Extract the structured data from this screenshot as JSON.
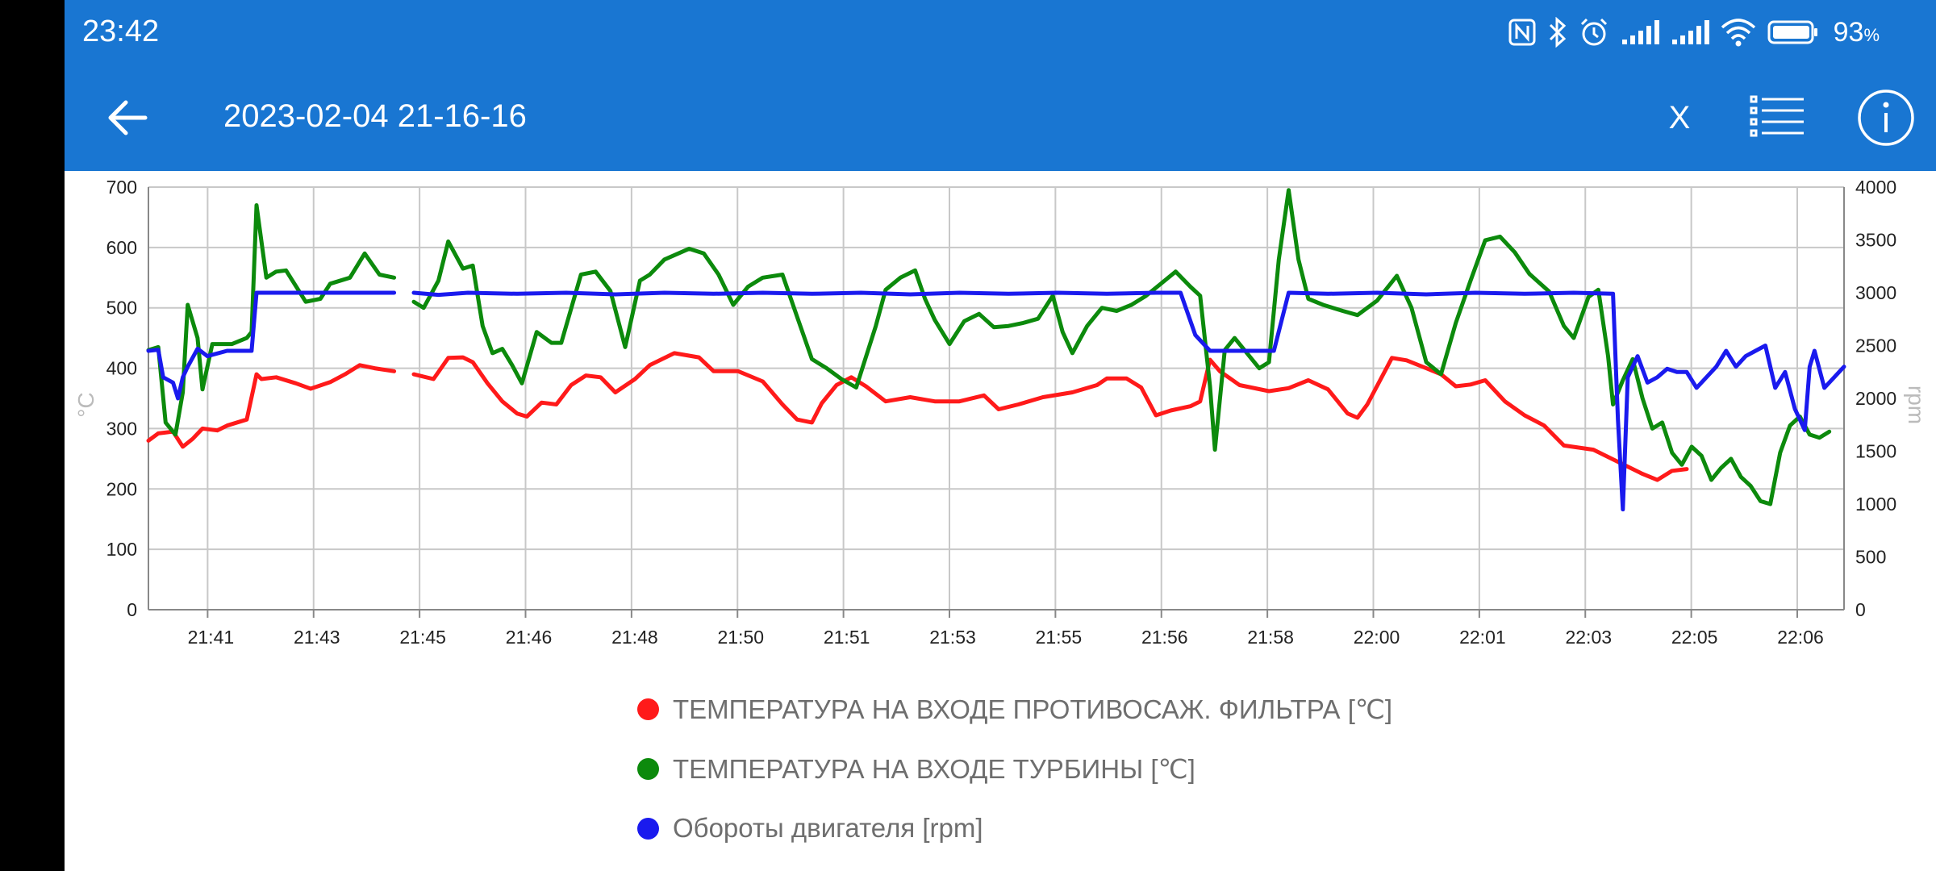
{
  "status_bar": {
    "time": "23:42",
    "battery_percent": "93",
    "battery_unit": "%",
    "icons": [
      "nfc-icon",
      "bluetooth-icon",
      "alarm-icon",
      "signal-icon",
      "signal-icon",
      "wifi-icon",
      "battery-icon"
    ]
  },
  "app_bar": {
    "title": "2023-02-04 21-16-16",
    "close_label": "X",
    "background": "#1976d2"
  },
  "chart_data": {
    "type": "line",
    "x": [
      "21:41",
      "21:43",
      "21:45",
      "21:46",
      "21:48",
      "21:50",
      "21:51",
      "21:53",
      "21:55",
      "21:56",
      "21:58",
      "22:00",
      "22:01",
      "22:03",
      "22:05",
      "22:06"
    ],
    "ylabel": "°C",
    "ylabel_right": "rpm",
    "ylim": [
      0,
      700
    ],
    "yticks": [
      "0",
      "100",
      "200",
      "300",
      "400",
      "500",
      "600",
      "700"
    ],
    "ylim_right": [
      0,
      4000
    ],
    "yticks_right": [
      "0",
      "500",
      "1000",
      "1500",
      "2000",
      "2500",
      "3000",
      "3500",
      "4000"
    ],
    "grid": true,
    "series": [
      {
        "name": "ТЕМПЕРАТУРА НА ВХОДЕ ПРОТИВОСАЖ. ФИЛЬТРА [℃]",
        "color": "#ff1a1a",
        "axis": "left",
        "points": [
          [
            0,
            280
          ],
          [
            0.2,
            292
          ],
          [
            0.5,
            295
          ],
          [
            0.7,
            270
          ],
          [
            0.9,
            283
          ],
          [
            1.1,
            300
          ],
          [
            1.4,
            297
          ],
          [
            1.6,
            305
          ],
          [
            2.0,
            315
          ],
          [
            2.2,
            390
          ],
          [
            2.3,
            382
          ],
          [
            2.6,
            385
          ],
          [
            3.0,
            375
          ],
          [
            3.3,
            366
          ],
          [
            3.7,
            377
          ],
          [
            4.0,
            390
          ],
          [
            4.3,
            405
          ],
          [
            4.6,
            400
          ],
          [
            5.0,
            395
          ],
          null,
          [
            5.4,
            390
          ],
          [
            5.8,
            382
          ],
          [
            6.1,
            417
          ],
          [
            6.4,
            418
          ],
          [
            6.6,
            410
          ],
          [
            6.9,
            375
          ],
          [
            7.2,
            345
          ],
          [
            7.5,
            325
          ],
          [
            7.7,
            320
          ],
          [
            8.0,
            343
          ],
          [
            8.3,
            340
          ],
          [
            8.6,
            372
          ],
          [
            8.9,
            388
          ],
          [
            9.2,
            385
          ],
          [
            9.5,
            360
          ],
          [
            9.9,
            382
          ],
          [
            10.2,
            405
          ],
          [
            10.7,
            425
          ],
          [
            11.2,
            418
          ],
          [
            11.5,
            395
          ],
          [
            12.0,
            395
          ],
          [
            12.5,
            378
          ],
          [
            12.9,
            340
          ],
          [
            13.2,
            315
          ],
          [
            13.5,
            310
          ],
          [
            13.7,
            342
          ],
          [
            14.0,
            372
          ],
          [
            14.3,
            385
          ],
          [
            14.6,
            370
          ],
          [
            15.0,
            345
          ],
          [
            15.5,
            352
          ],
          [
            16.0,
            345
          ],
          [
            16.5,
            345
          ],
          [
            17.0,
            355
          ],
          [
            17.3,
            332
          ],
          [
            17.7,
            340
          ],
          [
            18.2,
            352
          ],
          [
            18.8,
            360
          ],
          [
            19.3,
            372
          ],
          [
            19.5,
            383
          ],
          [
            19.9,
            383
          ],
          [
            20.2,
            368
          ],
          [
            20.5,
            322
          ],
          [
            20.8,
            330
          ],
          [
            21.2,
            337
          ],
          [
            21.4,
            345
          ],
          [
            21.6,
            414
          ],
          [
            21.8,
            395
          ],
          [
            22.2,
            372
          ],
          [
            22.8,
            362
          ],
          [
            23.2,
            367
          ],
          [
            23.6,
            380
          ],
          [
            24.0,
            365
          ],
          [
            24.4,
            325
          ],
          [
            24.6,
            318
          ],
          [
            24.8,
            340
          ],
          [
            25.3,
            417
          ],
          [
            25.6,
            413
          ],
          [
            26.0,
            400
          ],
          [
            26.3,
            390
          ],
          [
            26.6,
            370
          ],
          [
            26.9,
            373
          ],
          [
            27.2,
            380
          ],
          [
            27.6,
            345
          ],
          [
            28.0,
            322
          ],
          [
            28.4,
            305
          ],
          [
            28.8,
            272
          ],
          [
            29.4,
            265
          ],
          [
            29.9,
            245
          ],
          [
            30.4,
            225
          ],
          [
            30.7,
            215
          ],
          [
            31.0,
            230
          ],
          [
            31.3,
            233
          ]
        ]
      },
      {
        "name": "ТЕМПЕРАТУРА НА ВХОДЕ ТУРБИНЫ [℃]",
        "color": "#0c8a0c",
        "axis": "left",
        "points": [
          [
            0,
            430
          ],
          [
            0.2,
            435
          ],
          [
            0.35,
            310
          ],
          [
            0.55,
            290
          ],
          [
            0.7,
            360
          ],
          [
            0.8,
            505
          ],
          [
            1.0,
            450
          ],
          [
            1.1,
            365
          ],
          [
            1.3,
            440
          ],
          [
            1.7,
            440
          ],
          [
            2.0,
            450
          ],
          [
            2.1,
            460
          ],
          [
            2.2,
            670
          ],
          [
            2.4,
            550
          ],
          [
            2.6,
            560
          ],
          [
            2.8,
            562
          ],
          [
            3.2,
            510
          ],
          [
            3.5,
            515
          ],
          [
            3.7,
            540
          ],
          [
            4.1,
            550
          ],
          [
            4.4,
            590
          ],
          [
            4.7,
            555
          ],
          [
            5.0,
            550
          ],
          null,
          [
            5.4,
            510
          ],
          [
            5.6,
            500
          ],
          [
            5.9,
            545
          ],
          [
            6.1,
            610
          ],
          [
            6.4,
            565
          ],
          [
            6.6,
            570
          ],
          [
            6.8,
            470
          ],
          [
            7.0,
            425
          ],
          [
            7.2,
            432
          ],
          [
            7.4,
            405
          ],
          [
            7.6,
            375
          ],
          [
            7.9,
            460
          ],
          [
            8.2,
            442
          ],
          [
            8.4,
            442
          ],
          [
            8.8,
            555
          ],
          [
            9.1,
            560
          ],
          [
            9.4,
            528
          ],
          [
            9.7,
            435
          ],
          [
            10.0,
            545
          ],
          [
            10.2,
            555
          ],
          [
            10.5,
            580
          ],
          [
            11.0,
            598
          ],
          [
            11.3,
            590
          ],
          [
            11.6,
            555
          ],
          [
            11.9,
            505
          ],
          [
            12.2,
            535
          ],
          [
            12.5,
            550
          ],
          [
            12.9,
            555
          ],
          [
            13.2,
            485
          ],
          [
            13.5,
            415
          ],
          [
            13.8,
            400
          ],
          [
            14.1,
            382
          ],
          [
            14.4,
            368
          ],
          [
            14.8,
            470
          ],
          [
            15.0,
            530
          ],
          [
            15.3,
            550
          ],
          [
            15.6,
            562
          ],
          [
            15.8,
            515
          ],
          [
            16.0,
            480
          ],
          [
            16.3,
            440
          ],
          [
            16.6,
            478
          ],
          [
            16.9,
            490
          ],
          [
            17.2,
            468
          ],
          [
            17.5,
            470
          ],
          [
            17.8,
            475
          ],
          [
            18.1,
            482
          ],
          [
            18.4,
            520
          ],
          [
            18.6,
            460
          ],
          [
            18.8,
            425
          ],
          [
            19.1,
            470
          ],
          [
            19.4,
            500
          ],
          [
            19.7,
            495
          ],
          [
            20.0,
            505
          ],
          [
            20.3,
            520
          ],
          [
            20.6,
            540
          ],
          [
            20.9,
            560
          ],
          [
            21.2,
            535
          ],
          [
            21.4,
            520
          ],
          [
            21.6,
            370
          ],
          [
            21.7,
            265
          ],
          [
            21.9,
            430
          ],
          [
            22.1,
            450
          ],
          [
            22.4,
            420
          ],
          [
            22.6,
            400
          ],
          [
            22.8,
            410
          ],
          [
            23.0,
            580
          ],
          [
            23.2,
            695
          ],
          [
            23.4,
            580
          ],
          [
            23.6,
            515
          ],
          [
            23.9,
            505
          ],
          [
            24.3,
            495
          ],
          [
            24.6,
            488
          ],
          [
            25.0,
            512
          ],
          [
            25.4,
            553
          ],
          [
            25.7,
            500
          ],
          [
            26.0,
            410
          ],
          [
            26.3,
            390
          ],
          [
            26.6,
            475
          ],
          [
            26.9,
            545
          ],
          [
            27.2,
            612
          ],
          [
            27.5,
            618
          ],
          [
            27.8,
            592
          ],
          [
            28.1,
            556
          ],
          [
            28.5,
            527
          ],
          [
            28.8,
            470
          ],
          [
            29.0,
            450
          ],
          [
            29.3,
            518
          ],
          [
            29.5,
            530
          ],
          [
            29.7,
            420
          ],
          [
            29.8,
            340
          ],
          [
            30.0,
            380
          ],
          [
            30.2,
            415
          ],
          [
            30.4,
            350
          ],
          [
            30.6,
            300
          ],
          [
            30.8,
            310
          ],
          [
            31.0,
            260
          ],
          [
            31.2,
            240
          ],
          [
            31.4,
            270
          ],
          [
            31.6,
            255
          ],
          [
            31.8,
            215
          ],
          [
            32.0,
            235
          ],
          [
            32.2,
            250
          ],
          [
            32.4,
            220
          ],
          [
            32.6,
            205
          ],
          [
            32.8,
            180
          ],
          [
            33.0,
            175
          ],
          [
            33.2,
            260
          ],
          [
            33.4,
            305
          ],
          [
            33.6,
            320
          ],
          [
            33.8,
            290
          ],
          [
            34.0,
            285
          ],
          [
            34.2,
            295
          ]
        ]
      },
      {
        "name": "Обороты двигателя [rpm]",
        "color": "#1a1aee",
        "axis": "right",
        "points": [
          [
            0,
            2450
          ],
          [
            0.2,
            2460
          ],
          [
            0.3,
            2200
          ],
          [
            0.5,
            2150
          ],
          [
            0.6,
            2000
          ],
          [
            0.7,
            2200
          ],
          [
            0.8,
            2300
          ],
          [
            1.0,
            2470
          ],
          [
            1.2,
            2400
          ],
          [
            1.6,
            2450
          ],
          [
            2.0,
            2450
          ],
          [
            2.1,
            2450
          ],
          [
            2.2,
            3000
          ],
          [
            2.8,
            3000
          ],
          [
            3.5,
            3000
          ],
          [
            4.2,
            3000
          ],
          [
            4.6,
            3000
          ],
          [
            5.0,
            3000
          ],
          null,
          [
            5.4,
            3000
          ],
          [
            5.9,
            2980
          ],
          [
            6.5,
            3000
          ],
          [
            7.5,
            2990
          ],
          [
            8.5,
            3000
          ],
          [
            9.5,
            2985
          ],
          [
            10.5,
            3000
          ],
          [
            11.5,
            2990
          ],
          [
            12.5,
            3000
          ],
          [
            13.5,
            2990
          ],
          [
            14.5,
            3000
          ],
          [
            15.5,
            2985
          ],
          [
            16.5,
            3000
          ],
          [
            17.5,
            2990
          ],
          [
            18.5,
            3000
          ],
          [
            19.5,
            2990
          ],
          [
            20.5,
            3000
          ],
          [
            21.0,
            3000
          ],
          [
            21.3,
            2600
          ],
          [
            21.6,
            2450
          ],
          [
            22.2,
            2450
          ],
          [
            22.9,
            2450
          ],
          [
            23.2,
            3000
          ],
          [
            24.0,
            2990
          ],
          [
            25.0,
            3000
          ],
          [
            26.0,
            2985
          ],
          [
            27.0,
            3000
          ],
          [
            28.0,
            2990
          ],
          [
            29.0,
            3000
          ],
          [
            29.8,
            2990
          ],
          [
            29.9,
            1800
          ],
          [
            30.0,
            950
          ],
          [
            30.1,
            2200
          ],
          [
            30.3,
            2400
          ],
          [
            30.5,
            2150
          ],
          [
            30.7,
            2200
          ],
          [
            30.9,
            2280
          ],
          [
            31.1,
            2250
          ],
          [
            31.3,
            2250
          ],
          [
            31.5,
            2100
          ],
          [
            31.7,
            2200
          ],
          [
            31.9,
            2300
          ],
          [
            32.1,
            2450
          ],
          [
            32.3,
            2300
          ],
          [
            32.5,
            2400
          ],
          [
            32.7,
            2450
          ],
          [
            32.9,
            2500
          ],
          [
            33.1,
            2100
          ],
          [
            33.3,
            2250
          ],
          [
            33.5,
            1900
          ],
          [
            33.7,
            1700
          ],
          [
            33.8,
            2300
          ],
          [
            33.9,
            2450
          ],
          [
            34.1,
            2100
          ],
          [
            34.3,
            2200
          ],
          [
            34.5,
            2300
          ]
        ]
      }
    ]
  }
}
